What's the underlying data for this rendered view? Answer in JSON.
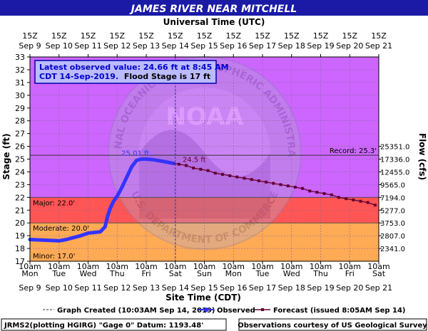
{
  "header": {
    "title": "JAMES RIVER NEAR MITCHELL",
    "top_axis_title": "Universal Time (UTC)",
    "top_hour_label": "15Z",
    "top_date_labels": [
      "Sep 9",
      "Sep 10",
      "Sep 11",
      "Sep 12",
      "Sep 13",
      "Sep 14",
      "Sep 15",
      "Sep 16",
      "Sep 17",
      "Sep 18",
      "Sep 19",
      "Sep 20",
      "Sep 21"
    ]
  },
  "info_box": {
    "line1": "Latest observed value: 24.66 ft at 8:45 AM",
    "line2_date": "CDT 14-Sep-2019.",
    "line2_flood": "Flood Stage is 17 ft"
  },
  "watermark": {
    "text_top": "NATIONAL OCEANIC AND ATMOSPHERIC ADMINISTRATION",
    "text_bottom": "U.S. DEPARTMENT OF COMMERCE",
    "center": "NOAA"
  },
  "bottom_axis": {
    "title": "Site Time (CDT)",
    "time_label": "10am",
    "weekday_labels": [
      "Mon",
      "Tue",
      "Wed",
      "Thu",
      "Fri",
      "Sat",
      "Sun",
      "Mon",
      "Tue",
      "Wed",
      "Thu",
      "Fri",
      "Sat"
    ],
    "date_labels": [
      "Sep 9",
      "Sep 10",
      "Sep 11",
      "Sep 12",
      "Sep 13",
      "Sep 14",
      "Sep 15",
      "Sep 16",
      "Sep 17",
      "Sep 18",
      "Sep 19",
      "Sep 20",
      "Sep 21"
    ]
  },
  "legend": {
    "graph_created": "Graph Created (10:03AM Sep 14, 2019)",
    "observed": "Observed",
    "forecast": "Forecast (issued 8:05AM Sep 14)"
  },
  "footer": {
    "left": "JRMS2(plotting HGIRG) \"Gage 0\" Datum: 1193.48'",
    "right": "Observations courtesy of US Geological Survey"
  },
  "colors": {
    "title_bg": "#1a1aa6",
    "major": "#cc66ff",
    "moderate": "#ff5555",
    "minor": "#ffaa55",
    "below_flood": "#ffcc66",
    "observed": "#3333ff",
    "forecast": "#660033",
    "info_bg": "#bbbbff",
    "info_border": "#0000aa"
  },
  "chart_data": {
    "type": "line",
    "title": "JAMES RIVER NEAR MITCHELL",
    "xlabel": "Site Time (CDT)",
    "ylabel": "Stage (ft)",
    "y2label": "Flow (cfs)",
    "ylim": [
      17,
      33
    ],
    "x_range": [
      "2019-09-09 10:00",
      "2019-09-21 10:00"
    ],
    "y_ticks": [
      17,
      18,
      19,
      20,
      21,
      22,
      23,
      24,
      25,
      26,
      27,
      28,
      29,
      30,
      31,
      32,
      33
    ],
    "flow_ticks": [
      {
        "stage": 18,
        "label": "2341.0"
      },
      {
        "stage": 19,
        "label": "2807.0"
      },
      {
        "stage": 20,
        "label": "3753.0"
      },
      {
        "stage": 21,
        "label": "5277.0"
      },
      {
        "stage": 22,
        "label": "7194.0"
      },
      {
        "stage": 23,
        "label": "9565.0"
      },
      {
        "stage": 24,
        "label": "12455.0"
      },
      {
        "stage": 25,
        "label": "17336.0"
      },
      {
        "stage": 26,
        "label": "25351.0"
      }
    ],
    "flood_categories": [
      {
        "name": "Major",
        "label": "Major: 22.0'",
        "stage": 22.0
      },
      {
        "name": "Moderate",
        "label": "Moderate: 20.0'",
        "stage": 20.0
      },
      {
        "name": "Minor",
        "label": "Minor: 17.0'",
        "stage": 17.0
      }
    ],
    "record": {
      "label": "Record: 25.3'",
      "stage": 25.3
    },
    "graph_created_time": "2019-09-14 10:03",
    "annotations": [
      {
        "text": "25.01 ft",
        "x": "2019-09-13 01:00",
        "y": 25.01,
        "color": "#3333ff"
      },
      {
        "text": "24.5 ft",
        "x": "2019-09-14 16:00",
        "y": 24.5,
        "color": "#660033"
      }
    ],
    "series": [
      {
        "name": "Observed",
        "points": [
          [
            "2019-09-09 10:00",
            18.7
          ],
          [
            "2019-09-10 10:00",
            18.6
          ],
          [
            "2019-09-10 16:00",
            18.7
          ],
          [
            "2019-09-11 04:00",
            19.0
          ],
          [
            "2019-09-11 10:00",
            19.2
          ],
          [
            "2019-09-11 20:00",
            19.3
          ],
          [
            "2019-09-12 00:00",
            19.7
          ],
          [
            "2019-09-12 02:00",
            20.5
          ],
          [
            "2019-09-12 04:00",
            21.1
          ],
          [
            "2019-09-12 07:00",
            21.7
          ],
          [
            "2019-09-12 10:00",
            22.1
          ],
          [
            "2019-09-12 14:00",
            22.8
          ],
          [
            "2019-09-12 18:00",
            23.6
          ],
          [
            "2019-09-12 22:00",
            24.4
          ],
          [
            "2019-09-13 02:00",
            24.9
          ],
          [
            "2019-09-13 06:00",
            25.0
          ],
          [
            "2019-09-13 10:00",
            25.0
          ],
          [
            "2019-09-13 16:00",
            24.95
          ],
          [
            "2019-09-13 22:00",
            24.85
          ],
          [
            "2019-09-14 04:00",
            24.75
          ],
          [
            "2019-09-14 08:45",
            24.66
          ]
        ]
      },
      {
        "name": "Forecast",
        "points": [
          [
            "2019-09-14 13:00",
            24.6
          ],
          [
            "2019-09-14 19:00",
            24.5
          ],
          [
            "2019-09-15 01:00",
            24.3
          ],
          [
            "2019-09-15 07:00",
            24.2
          ],
          [
            "2019-09-15 13:00",
            24.1
          ],
          [
            "2019-09-15 19:00",
            23.9
          ],
          [
            "2019-09-16 01:00",
            23.8
          ],
          [
            "2019-09-16 07:00",
            23.7
          ],
          [
            "2019-09-16 13:00",
            23.6
          ],
          [
            "2019-09-16 19:00",
            23.5
          ],
          [
            "2019-09-17 01:00",
            23.4
          ],
          [
            "2019-09-17 07:00",
            23.3
          ],
          [
            "2019-09-17 13:00",
            23.2
          ],
          [
            "2019-09-17 19:00",
            23.1
          ],
          [
            "2019-09-18 01:00",
            23.0
          ],
          [
            "2019-09-18 07:00",
            22.9
          ],
          [
            "2019-09-18 13:00",
            22.8
          ],
          [
            "2019-09-18 19:00",
            22.7
          ],
          [
            "2019-09-19 01:00",
            22.5
          ],
          [
            "2019-09-19 07:00",
            22.4
          ],
          [
            "2019-09-19 13:00",
            22.3
          ],
          [
            "2019-09-19 19:00",
            22.2
          ],
          [
            "2019-09-20 01:00",
            22.0
          ],
          [
            "2019-09-20 07:00",
            21.9
          ],
          [
            "2019-09-20 13:00",
            21.8
          ],
          [
            "2019-09-20 19:00",
            21.7
          ],
          [
            "2019-09-21 01:00",
            21.6
          ],
          [
            "2019-09-21 07:00",
            21.4
          ]
        ]
      }
    ]
  }
}
